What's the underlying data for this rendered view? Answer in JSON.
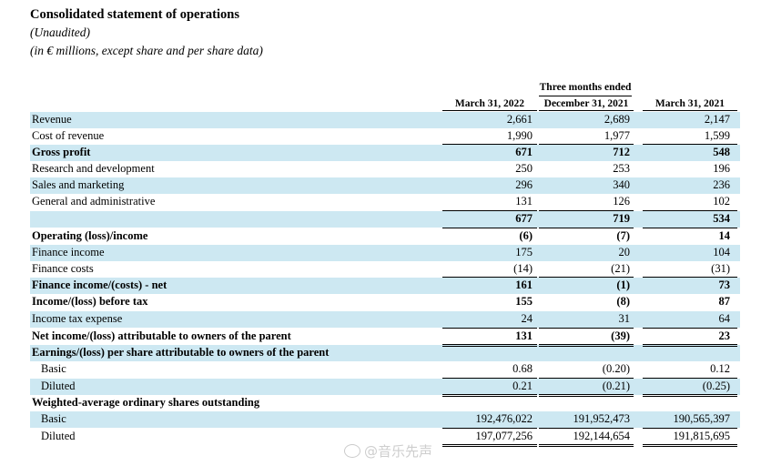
{
  "header": {
    "title": "Consolidated statement of operations",
    "subtitle1": "(Unaudited)",
    "subtitle2": "(in € millions, except share and per share data)"
  },
  "table": {
    "period_label": "Three months ended",
    "columns": [
      "March 31, 2022",
      "December 31, 2021",
      "March 31, 2021"
    ],
    "rows": [
      {
        "label": "Revenue",
        "values": [
          "2,661",
          "2,689",
          "2,147"
        ]
      },
      {
        "label": "Cost of revenue",
        "values": [
          "1,990",
          "1,977",
          "1,599"
        ]
      },
      {
        "label": "Gross profit",
        "values": [
          "671",
          "712",
          "548"
        ]
      },
      {
        "label": "Research and development",
        "values": [
          "250",
          "253",
          "196"
        ]
      },
      {
        "label": "Sales and marketing",
        "values": [
          "296",
          "340",
          "236"
        ]
      },
      {
        "label": "General and administrative",
        "values": [
          "131",
          "126",
          "102"
        ]
      },
      {
        "label": "",
        "values": [
          "677",
          "719",
          "534"
        ]
      },
      {
        "label": "Operating (loss)/income",
        "values": [
          "(6)",
          "(7)",
          "14"
        ]
      },
      {
        "label": "Finance income",
        "values": [
          "175",
          "20",
          "104"
        ]
      },
      {
        "label": "Finance costs",
        "values": [
          "(14)",
          "(21)",
          "(31)"
        ]
      },
      {
        "label": "Finance income/(costs) - net",
        "values": [
          "161",
          "(1)",
          "73"
        ]
      },
      {
        "label": "Income/(loss) before tax",
        "values": [
          "155",
          "(8)",
          "87"
        ]
      },
      {
        "label": "Income tax expense",
        "values": [
          "24",
          "31",
          "64"
        ]
      },
      {
        "label": "Net income/(loss) attributable to owners of the parent",
        "values": [
          "131",
          "(39)",
          "23"
        ]
      },
      {
        "label": "Earnings/(loss) per share attributable to owners of the parent",
        "values": [
          "",
          "",
          ""
        ]
      },
      {
        "label": "Basic",
        "values": [
          "0.68",
          "(0.20)",
          "0.12"
        ]
      },
      {
        "label": "Diluted",
        "values": [
          "0.21",
          "(0.21)",
          "(0.25)"
        ]
      },
      {
        "label": "Weighted-average ordinary shares outstanding",
        "values": [
          "",
          "",
          ""
        ]
      },
      {
        "label": "Basic",
        "values": [
          "192,476,022",
          "191,952,473",
          "190,565,397"
        ]
      },
      {
        "label": "Diluted",
        "values": [
          "197,077,256",
          "192,144,654",
          "191,815,695"
        ]
      }
    ]
  },
  "watermark": {
    "text": "@音乐先声"
  }
}
